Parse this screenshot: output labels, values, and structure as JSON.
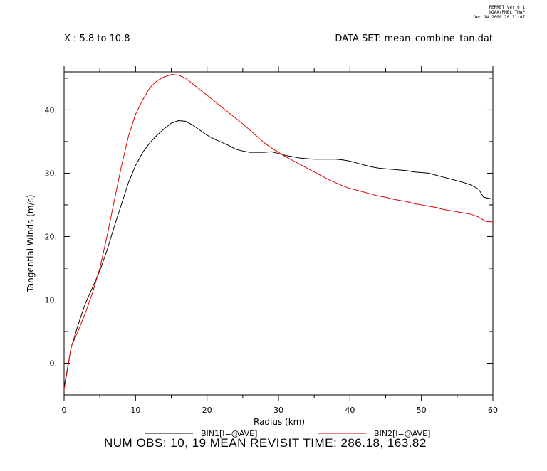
{
  "stamp": {
    "line1": "FERRET  Ver.6.1",
    "line2": "NOAA/PMEL TMAP",
    "line3": "Dec 14 2008 20:11:07"
  },
  "header": {
    "left": "X : 5.8 to 10.8",
    "right": "DATA SET: mean_combine_tan.dat"
  },
  "footer": {
    "text": "NUM OBS: 10, 19 MEAN REVISIT TIME: 286.18, 163.82"
  },
  "colors": {
    "bin1": "#000000",
    "bin2": "#e00000",
    "axis": "#000000"
  },
  "chart_data": {
    "type": "line",
    "title": "",
    "xlabel": "Radius (km)",
    "ylabel": "Tangential Winds (m/s)",
    "xlim": [
      0,
      60
    ],
    "ylim": [
      -5,
      46
    ],
    "x_ticks": [
      0,
      10,
      20,
      30,
      40,
      50,
      60
    ],
    "x_tick_labels": [
      "0",
      "10",
      "20",
      "30",
      "40",
      "50",
      "60"
    ],
    "y_ticks": [
      0,
      10,
      20,
      30,
      40
    ],
    "y_tick_labels": [
      "0.",
      "10.",
      "20.",
      "30.",
      "40."
    ],
    "grid": false,
    "legend_position": "bottom",
    "series": [
      {
        "name": "BIN1[I=@AVE]",
        "color": "#000000",
        "x": [
          0,
          1,
          2,
          3,
          4,
          5,
          6,
          7,
          8,
          9,
          10,
          11,
          12,
          13,
          14,
          15,
          16,
          17,
          18,
          19,
          20,
          21,
          22,
          23,
          24,
          25,
          26,
          27,
          28,
          29,
          30,
          31,
          32,
          33,
          34,
          35,
          36,
          37,
          38,
          39,
          40,
          41,
          42,
          43,
          44,
          45,
          46,
          47,
          48,
          49,
          50,
          51,
          52,
          53,
          54,
          55,
          56,
          57,
          58,
          58.7,
          60
        ],
        "y": [
          -3.8,
          2.5,
          6.2,
          9.5,
          12.0,
          14.6,
          17.8,
          21.5,
          25.0,
          28.5,
          31.2,
          33.3,
          34.8,
          36.0,
          37.0,
          37.9,
          38.3,
          38.2,
          37.6,
          36.8,
          36.0,
          35.4,
          34.9,
          34.4,
          33.8,
          33.5,
          33.3,
          33.3,
          33.3,
          33.4,
          33.1,
          32.8,
          32.6,
          32.4,
          32.3,
          32.2,
          32.2,
          32.2,
          32.2,
          32.1,
          31.9,
          31.6,
          31.3,
          31.0,
          30.8,
          30.7,
          30.6,
          30.5,
          30.4,
          30.2,
          30.1,
          30.0,
          29.7,
          29.4,
          29.1,
          28.8,
          28.5,
          28.1,
          27.5,
          26.2,
          25.9
        ]
      },
      {
        "name": "BIN2[I=@AVE]",
        "color": "#e00000",
        "x": [
          0,
          1,
          2,
          3,
          4,
          5,
          6,
          7,
          8,
          9,
          10,
          11,
          12,
          13,
          14,
          15,
          16,
          17,
          18,
          19,
          20,
          21,
          22,
          23,
          24,
          25,
          26,
          27,
          28,
          29,
          30,
          31,
          32,
          33,
          34,
          35,
          36,
          37,
          38,
          39,
          40,
          41,
          42,
          43,
          44,
          45,
          46,
          47,
          48,
          49,
          50,
          51,
          52,
          53,
          54,
          55,
          56,
          57,
          58,
          59,
          60
        ],
        "y": [
          -4.2,
          2.6,
          5.2,
          8.0,
          11.2,
          15.0,
          20.0,
          25.5,
          31.0,
          35.8,
          39.3,
          41.6,
          43.5,
          44.6,
          45.2,
          45.6,
          45.5,
          45.0,
          44.1,
          43.2,
          42.3,
          41.4,
          40.5,
          39.6,
          38.7,
          37.8,
          36.8,
          35.8,
          34.8,
          34.0,
          33.3,
          32.6,
          32.0,
          31.4,
          30.8,
          30.2,
          29.6,
          29.0,
          28.5,
          28.0,
          27.6,
          27.3,
          27.0,
          26.7,
          26.4,
          26.2,
          25.9,
          25.7,
          25.5,
          25.2,
          25.0,
          24.8,
          24.6,
          24.3,
          24.1,
          23.9,
          23.7,
          23.5,
          23.1,
          22.4,
          22.3
        ]
      }
    ]
  }
}
